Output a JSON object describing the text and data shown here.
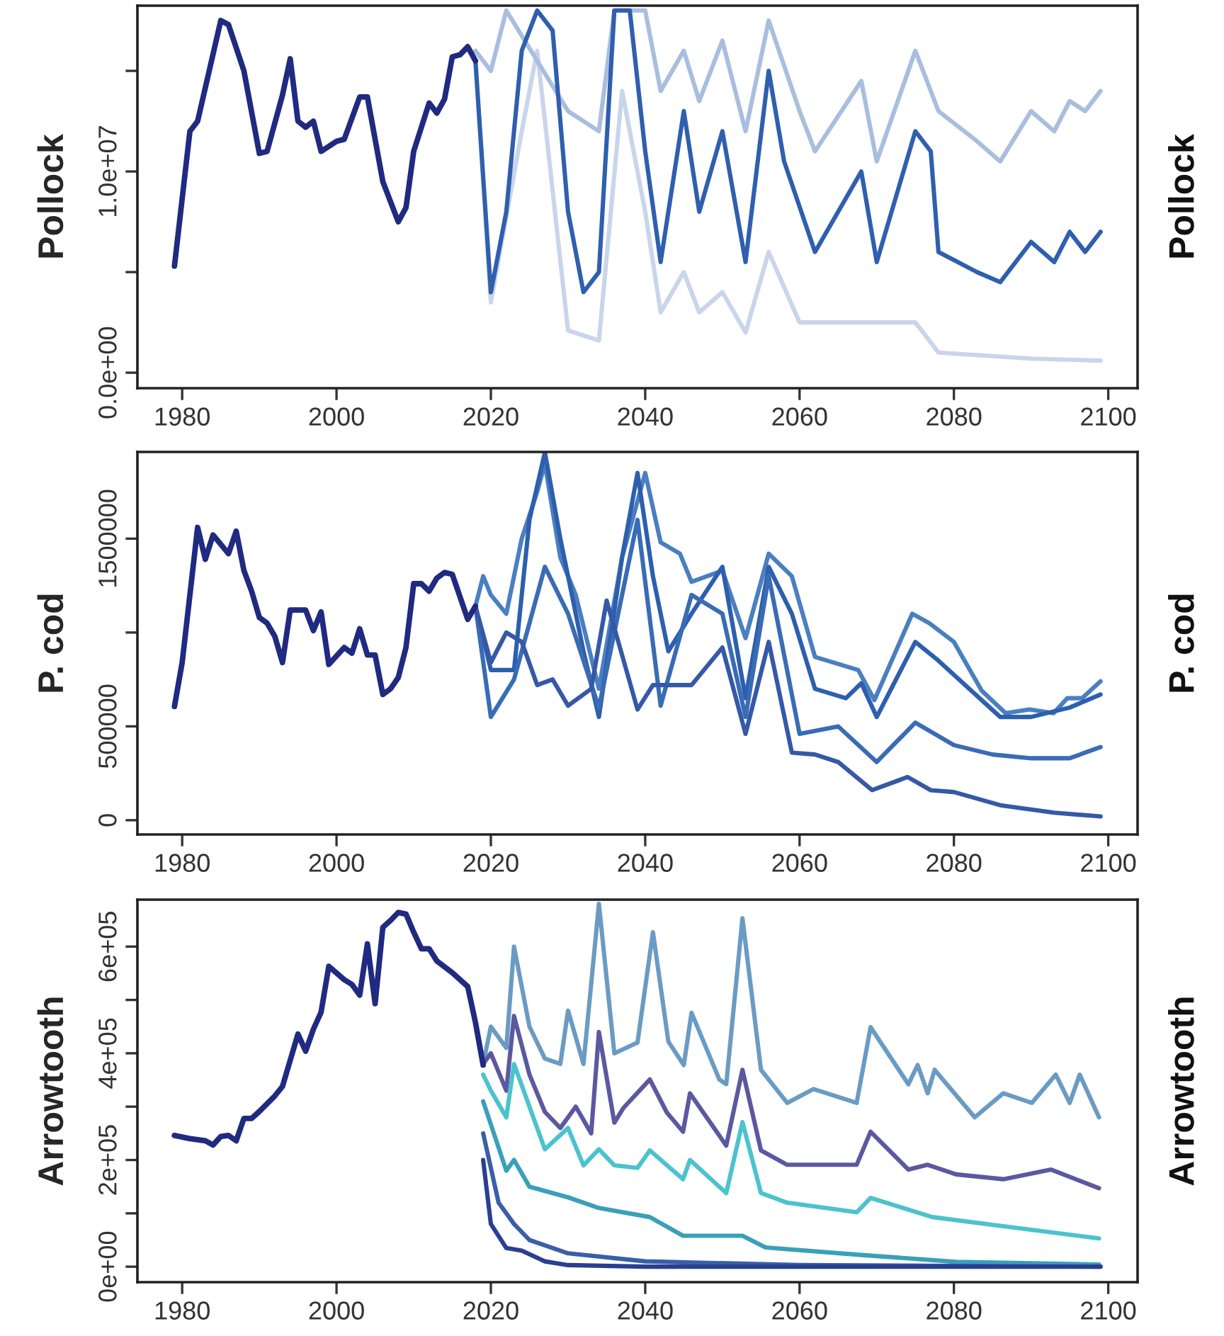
{
  "chart_data": [
    {
      "type": "line",
      "ylabel": "Pollock",
      "annotations": [
        "Pollock"
      ],
      "xlim": [
        1974.2,
        2103.8
      ],
      "xticks": [
        1980,
        2000,
        2020,
        2040,
        2060,
        2080,
        2100
      ],
      "ylim": [
        -770000,
        18240000
      ],
      "yticks": [
        {
          "value": 0,
          "label": "0.0e+00"
        },
        {
          "value": 5000000,
          "label": null
        },
        {
          "value": 10000000,
          "label": "1.0e+07"
        },
        {
          "value": 15000000,
          "label": null
        }
      ],
      "grid": false,
      "legend": false,
      "line_style": "solid",
      "marker": "none",
      "series": [
        {
          "color": "#c9d5ea",
          "x": [
            2018,
            2020,
            2024,
            2026,
            2030,
            2034,
            2037,
            2040,
            2042,
            2045,
            2047,
            2050,
            2053,
            2056,
            2060,
            2068,
            2075,
            2078,
            2090,
            2099
          ],
          "values": [
            15500000,
            3500000,
            12000000,
            16000000,
            2100000,
            1600000,
            14000000,
            8000000,
            3000000,
            5000000,
            3000000,
            4000000,
            2000000,
            6000000,
            2500000,
            2500000,
            2500000,
            1000000,
            700000,
            600000
          ]
        },
        {
          "color": "#a9bedf",
          "x": [
            2018,
            2020,
            2022,
            2030,
            2034,
            2036,
            2040,
            2042,
            2045,
            2047,
            2050,
            2053,
            2056,
            2060,
            2062,
            2068,
            2070,
            2075,
            2078,
            2083,
            2086,
            2090,
            2093,
            2095,
            2097,
            2099
          ],
          "values": [
            16000000,
            15000000,
            18000000,
            13000000,
            12000000,
            18000000,
            18000000,
            14000000,
            16000000,
            13500000,
            16500000,
            12000000,
            17500000,
            13000000,
            11000000,
            14500000,
            10500000,
            16000000,
            13000000,
            11500000,
            10500000,
            13000000,
            12000000,
            13500000,
            13000000,
            14000000
          ]
        },
        {
          "color": "#2f5fae",
          "x": [
            2018,
            2020,
            2022,
            2024,
            2026,
            2028,
            2030,
            2032,
            2034,
            2036,
            2038,
            2040,
            2042,
            2045,
            2047,
            2050,
            2053,
            2056,
            2058,
            2062,
            2068,
            2070,
            2075,
            2077,
            2078,
            2083,
            2086,
            2090,
            2093,
            2095,
            2097,
            2099
          ],
          "values": [
            15500000,
            4000000,
            8000000,
            16000000,
            18000000,
            17000000,
            8000000,
            4000000,
            5000000,
            18000000,
            18000000,
            11000000,
            5500000,
            13000000,
            8000000,
            12000000,
            5500000,
            15000000,
            10500000,
            6000000,
            10000000,
            5500000,
            12000000,
            11000000,
            6000000,
            5000000,
            4500000,
            6500000,
            5500000,
            7000000,
            6000000,
            7000000
          ]
        },
        {
          "color": "#1f2a80",
          "x": [
            1979,
            1981,
            1982,
            1985,
            1986,
            1988,
            1990,
            1991,
            1993,
            1994,
            1995,
            1996,
            1997,
            1998,
            2000,
            2001,
            2003,
            2004,
            2006,
            2008,
            2009,
            2010,
            2012,
            2013,
            2014,
            2015,
            2016,
            2017,
            2018
          ],
          "values": [
            5300000,
            12000000,
            12500000,
            17500000,
            17300000,
            15000000,
            10900000,
            11000000,
            13800000,
            15600000,
            12500000,
            12200000,
            12500000,
            11000000,
            11500000,
            11600000,
            13700000,
            13700000,
            9500000,
            7500000,
            8200000,
            11000000,
            13400000,
            12900000,
            13600000,
            15700000,
            15800000,
            16200000,
            15500000
          ]
        }
      ]
    },
    {
      "type": "line",
      "ylabel": "P. cod",
      "annotations": [
        "P. cod"
      ],
      "xlim": [
        1974.2,
        2103.8
      ],
      "xticks": [
        1980,
        2000,
        2020,
        2040,
        2060,
        2080,
        2100
      ],
      "ylim": [
        -76000,
        1962000
      ],
      "yticks": [
        0,
        500000,
        {
          "value": 1000000,
          "label": null
        },
        1500000
      ],
      "grid": false,
      "legend": false,
      "line_style": "solid",
      "marker": "none",
      "series": [
        {
          "color": "#4a7fc0",
          "x": [
            2018,
            2019,
            2020,
            2022,
            2024,
            2026,
            2027,
            2029,
            2031,
            2034,
            2037,
            2040,
            2042,
            2044.5,
            2046,
            2050,
            2053,
            2056,
            2059,
            2062,
            2067.6,
            2069.7,
            2074.6,
            2076.8,
            2080,
            2083.6,
            2086.7,
            2089.8,
            2092.9,
            2094.7,
            2096.6,
            2099
          ],
          "values": [
            1140000,
            1300000,
            1200000,
            1100000,
            1500000,
            1750000,
            1900000,
            1400000,
            1200000,
            700000,
            1400000,
            1850000,
            1480000,
            1420000,
            1270000,
            1330000,
            970000,
            1420000,
            1300000,
            870000,
            800000,
            640000,
            1100000,
            1050000,
            950000,
            690000,
            570000,
            590000,
            570000,
            650000,
            650000,
            740000
          ]
        },
        {
          "color": "#2d5fae",
          "x": [
            2018,
            2020,
            2023,
            2025,
            2027,
            2029,
            2032,
            2034,
            2037,
            2039,
            2041,
            2043,
            2046,
            2050,
            2053,
            2056,
            2059,
            2062,
            2066,
            2068,
            2070,
            2075,
            2078,
            2082,
            2086,
            2090,
            2095,
            2099
          ],
          "values": [
            1140000,
            800000,
            800000,
            1600000,
            1960000,
            1500000,
            900000,
            550000,
            1400000,
            1850000,
            1300000,
            900000,
            1100000,
            1350000,
            650000,
            1350000,
            1100000,
            700000,
            650000,
            730000,
            550000,
            950000,
            850000,
            700000,
            550000,
            550000,
            600000,
            670000
          ]
        },
        {
          "color": "#3a6cb5",
          "x": [
            2018,
            2020,
            2023,
            2027,
            2030,
            2034,
            2039,
            2042,
            2046,
            2050,
            2053,
            2056,
            2060,
            2065,
            2070,
            2075,
            2080,
            2085,
            2090,
            2095,
            2099
          ],
          "values": [
            1140000,
            550000,
            750000,
            1350000,
            1100000,
            600000,
            1600000,
            610000,
            1200000,
            1100000,
            550000,
            1300000,
            460000,
            500000,
            310000,
            520000,
            400000,
            350000,
            330000,
            330000,
            390000
          ]
        },
        {
          "color": "#3559a6",
          "x": [
            2018,
            2020,
            2022,
            2024,
            2026,
            2028,
            2030,
            2033,
            2035,
            2039,
            2041,
            2046,
            2050,
            2053,
            2056,
            2059,
            2062,
            2065,
            2069.4,
            2074,
            2077,
            2080,
            2086,
            2093,
            2099
          ],
          "values": [
            1140000,
            840000,
            1000000,
            950000,
            720000,
            750000,
            610000,
            700000,
            1170000,
            590000,
            720000,
            720000,
            920000,
            460000,
            950000,
            360000,
            350000,
            310000,
            160000,
            230000,
            160000,
            150000,
            80000,
            40000,
            20000
          ]
        },
        {
          "color": "#1f2a80",
          "x": [
            1979,
            1980,
            1982,
            1983,
            1984,
            1986,
            1987,
            1988,
            1989,
            1990,
            1991,
            1992,
            1993,
            1994,
            1996,
            1997,
            1998,
            1999,
            2001,
            2002,
            2003,
            2004,
            2005,
            2006,
            2007,
            2008,
            2009,
            2010,
            2011,
            2012,
            2013,
            2014,
            2015,
            2017,
            2018
          ],
          "values": [
            606000,
            840000,
            1560000,
            1390000,
            1520000,
            1420000,
            1540000,
            1330000,
            1220000,
            1080000,
            1050000,
            980000,
            840000,
            1120000,
            1120000,
            1010000,
            1110000,
            830000,
            920000,
            890000,
            1020000,
            880000,
            880000,
            670000,
            700000,
            760000,
            920000,
            1260000,
            1260000,
            1220000,
            1290000,
            1320000,
            1310000,
            1070000,
            1140000
          ]
        }
      ]
    },
    {
      "type": "line",
      "ylabel": "Arrowtooth",
      "annotations": [
        "Arrowtooth"
      ],
      "xlim": [
        1974.2,
        2103.8
      ],
      "xticks": [
        1980,
        2000,
        2020,
        2040,
        2060,
        2080,
        2100
      ],
      "ylim": [
        -29000,
        688000
      ],
      "yticks": [
        {
          "value": 0,
          "label": "0e+00"
        },
        {
          "value": 100000,
          "label": null
        },
        {
          "value": 200000,
          "label": "2e+05"
        },
        {
          "value": 300000,
          "label": null
        },
        {
          "value": 400000,
          "label": "4e+05"
        },
        {
          "value": 500000,
          "label": null
        },
        {
          "value": 600000,
          "label": "6e+05"
        }
      ],
      "grid": false,
      "legend": false,
      "line_style": "solid",
      "marker": "none",
      "series": [
        {
          "color": "#6a9bc3",
          "x": [
            2019,
            2020,
            2022,
            2023,
            2025,
            2027,
            2029,
            2030,
            2032,
            2034,
            2036,
            2039,
            2041,
            2043,
            2045,
            2046,
            2049.6,
            2050.5,
            2052.6,
            2055,
            2058.4,
            2061.8,
            2067.4,
            2069.2,
            2074.1,
            2075.3,
            2076.6,
            2077.5,
            2082.7,
            2086.4,
            2090.1,
            2093.2,
            2095,
            2096.3,
            2098.8
          ],
          "values": [
            380000,
            450000,
            410000,
            600000,
            450000,
            390000,
            380000,
            480000,
            380000,
            680000,
            400000,
            420000,
            627000,
            422000,
            378000,
            476000,
            351000,
            342000,
            653000,
            369000,
            307000,
            333000,
            307000,
            449000,
            342000,
            378000,
            325000,
            369000,
            280000,
            325000,
            307000,
            360000,
            307000,
            360000,
            280000
          ]
        },
        {
          "color": "#5c58a0",
          "x": [
            2019,
            2020,
            2022,
            2023,
            2025,
            2027,
            2029,
            2031,
            2033,
            2034,
            2036,
            2037.2,
            2040.6,
            2042.8,
            2044.9,
            2045.8,
            2050.5,
            2052.6,
            2055,
            2058.4,
            2067.4,
            2069.2,
            2074.1,
            2076.6,
            2080.3,
            2086.4,
            2092.6,
            2098.8
          ],
          "values": [
            380000,
            400000,
            330000,
            470000,
            360000,
            290000,
            260000,
            300000,
            250000,
            440000,
            270000,
            298000,
            351000,
            289000,
            253000,
            325000,
            227000,
            369000,
            218000,
            191000,
            191000,
            253000,
            182000,
            191000,
            173000,
            164000,
            182000,
            147000
          ]
        },
        {
          "color": "#4cc3cc",
          "x": [
            2019,
            2020,
            2022,
            2023,
            2025,
            2027,
            2030,
            2032,
            2034,
            2036,
            2039,
            2040.6,
            2044.9,
            2045.8,
            2050.5,
            2052.6,
            2055,
            2058.4,
            2067.4,
            2069.2,
            2077.2,
            2086.4,
            2098.8
          ],
          "values": [
            360000,
            330000,
            280000,
            380000,
            300000,
            220000,
            260000,
            190000,
            220000,
            190000,
            185000,
            218000,
            164000,
            200000,
            138000,
            271000,
            138000,
            120000,
            102000,
            129000,
            93000,
            76000,
            53000
          ]
        },
        {
          "color": "#3aa0b8",
          "x": [
            2019,
            2022,
            2023,
            2025,
            2030,
            2034,
            2040.6,
            2044.9,
            2052.6,
            2055.6,
            2068,
            2080.3,
            2098.8
          ],
          "values": [
            310000,
            180000,
            200000,
            150000,
            130000,
            110000,
            93000,
            58000,
            58000,
            36000,
            22000,
            9000,
            4000
          ]
        },
        {
          "color": "#3a5fa8",
          "x": [
            2019,
            2021,
            2023,
            2025,
            2030,
            2040,
            2060,
            2099
          ],
          "values": [
            250000,
            120000,
            80000,
            50000,
            25000,
            10000,
            3000,
            0
          ]
        },
        {
          "color": "#2a3f90",
          "x": [
            2019,
            2020,
            2022,
            2024,
            2027,
            2030,
            2040,
            2099
          ],
          "values": [
            200000,
            80000,
            35000,
            30000,
            10000,
            3000,
            0,
            0
          ]
        },
        {
          "color": "#1f2a80",
          "x": [
            1979,
            1981,
            1983,
            1984,
            1985,
            1986,
            1987,
            1988,
            1989,
            1990,
            1992,
            1993,
            1995,
            1996,
            1997,
            1998,
            1999,
            2001,
            2002,
            2003,
            2004,
            2005,
            2006,
            2007,
            2008,
            2009,
            2010,
            2011,
            2012,
            2013,
            2015,
            2017,
            2018,
            2019
          ],
          "values": [
            246000,
            240000,
            236000,
            228000,
            244000,
            246000,
            236000,
            278000,
            278000,
            291000,
            320000,
            338000,
            436000,
            404000,
            445000,
            477000,
            563000,
            538000,
            529000,
            509000,
            605000,
            493000,
            636000,
            649000,
            664000,
            661000,
            627000,
            596000,
            596000,
            573000,
            551000,
            525000,
            458000,
            378000
          ]
        }
      ]
    }
  ]
}
